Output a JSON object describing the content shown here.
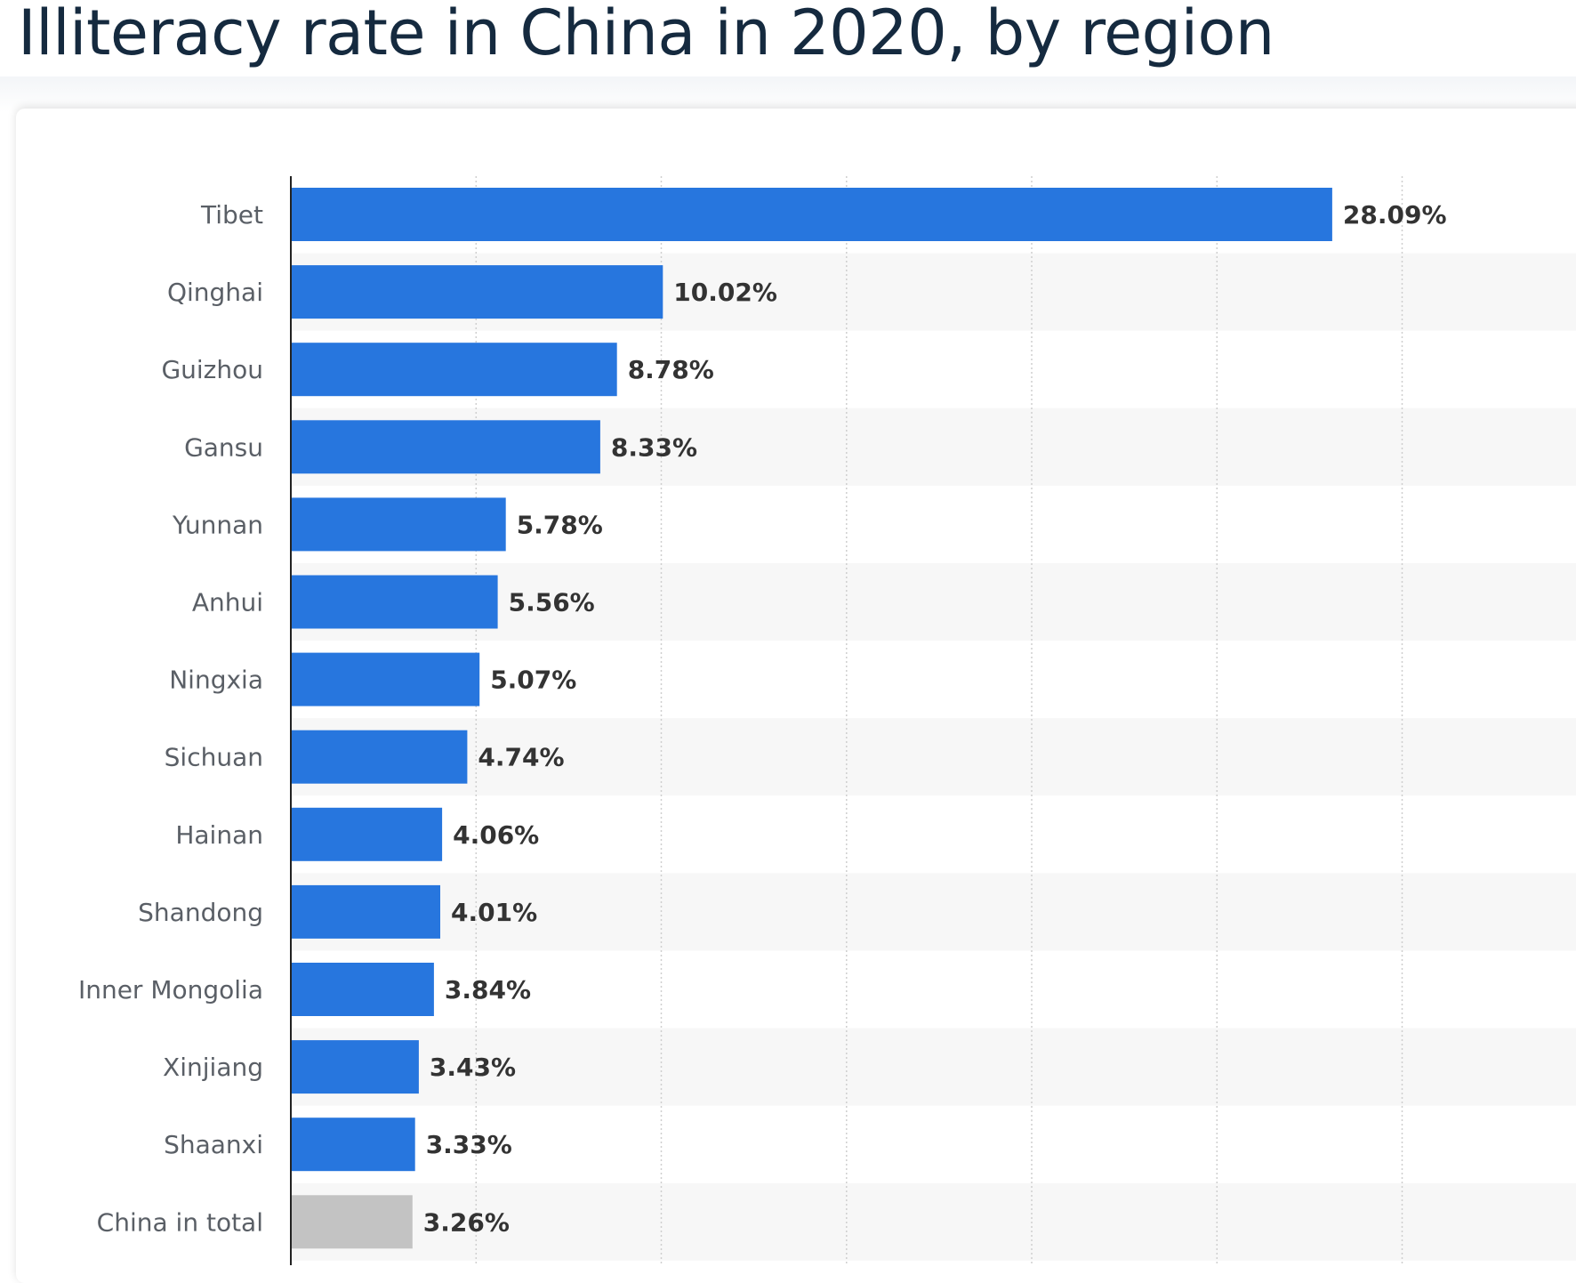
{
  "title": "Illiteracy rate in China in 2020, by region",
  "colors": {
    "bar": "#2776de",
    "bar_total": "#c3c3c3",
    "band": "#f7f7f7",
    "grid": "#cfcfcf",
    "axis": "#222222"
  },
  "chart_data": {
    "type": "bar",
    "orientation": "horizontal",
    "title": "Illiteracy rate in China in 2020, by region",
    "xlabel": "",
    "ylabel": "",
    "xlim": [
      0,
      30
    ],
    "grid": true,
    "categories": [
      "Tibet",
      "Qinghai",
      "Guizhou",
      "Gansu",
      "Yunnan",
      "Anhui",
      "Ningxia",
      "Sichuan",
      "Hainan",
      "Shandong",
      "Inner Mongolia",
      "Xinjiang",
      "Shaanxi",
      "China in total"
    ],
    "values": [
      28.09,
      10.02,
      8.78,
      8.33,
      5.78,
      5.56,
      5.07,
      4.74,
      4.06,
      4.01,
      3.84,
      3.43,
      3.33,
      3.26
    ],
    "value_labels": [
      "28.09%",
      "10.02%",
      "8.78%",
      "8.33%",
      "5.78%",
      "5.56%",
      "5.07%",
      "4.74%",
      "4.06%",
      "4.01%",
      "3.84%",
      "3.43%",
      "3.33%",
      "3.26%"
    ],
    "highlight": [
      "China in total"
    ]
  }
}
